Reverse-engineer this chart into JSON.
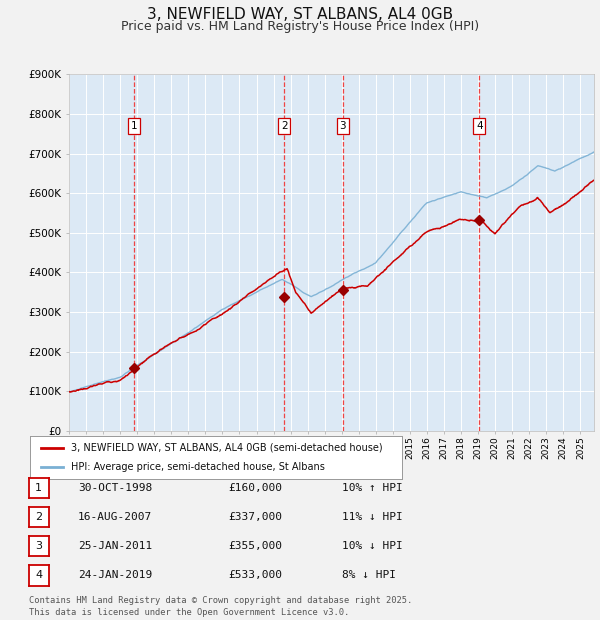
{
  "title": "3, NEWFIELD WAY, ST ALBANS, AL4 0GB",
  "subtitle": "Price paid vs. HM Land Registry's House Price Index (HPI)",
  "title_fontsize": 11,
  "subtitle_fontsize": 9,
  "background_color": "#dce9f5",
  "fig_bg_color": "#f2f2f2",
  "grid_color": "#ffffff",
  "red_line_color": "#cc0000",
  "blue_line_color": "#7ab0d4",
  "sale_marker_color": "#990000",
  "vline_color": "#ee4444",
  "ylim": [
    0,
    900000
  ],
  "yticks": [
    0,
    100000,
    200000,
    300000,
    400000,
    500000,
    600000,
    700000,
    800000,
    900000
  ],
  "ytick_labels": [
    "£0",
    "£100K",
    "£200K",
    "£300K",
    "£400K",
    "£500K",
    "£600K",
    "£700K",
    "£800K",
    "£900K"
  ],
  "xlim_start": 1995.0,
  "xlim_end": 2025.8,
  "sales": [
    {
      "num": 1,
      "year": 1998.83,
      "price": 160000,
      "label": "1"
    },
    {
      "num": 2,
      "year": 2007.62,
      "price": 337000,
      "label": "2"
    },
    {
      "num": 3,
      "year": 2011.07,
      "price": 355000,
      "label": "3"
    },
    {
      "num": 4,
      "year": 2019.07,
      "price": 533000,
      "label": "4"
    }
  ],
  "legend_line1": "3, NEWFIELD WAY, ST ALBANS, AL4 0GB (semi-detached house)",
  "legend_line2": "HPI: Average price, semi-detached house, St Albans",
  "footer": "Contains HM Land Registry data © Crown copyright and database right 2025.\nThis data is licensed under the Open Government Licence v3.0.",
  "table_rows": [
    [
      "1",
      "30-OCT-1998",
      "£160,000",
      "10% ↑ HPI"
    ],
    [
      "2",
      "16-AUG-2007",
      "£337,000",
      "11% ↓ HPI"
    ],
    [
      "3",
      "25-JAN-2011",
      "£355,000",
      "10% ↓ HPI"
    ],
    [
      "4",
      "24-JAN-2019",
      "£533,000",
      "8% ↓ HPI"
    ]
  ]
}
